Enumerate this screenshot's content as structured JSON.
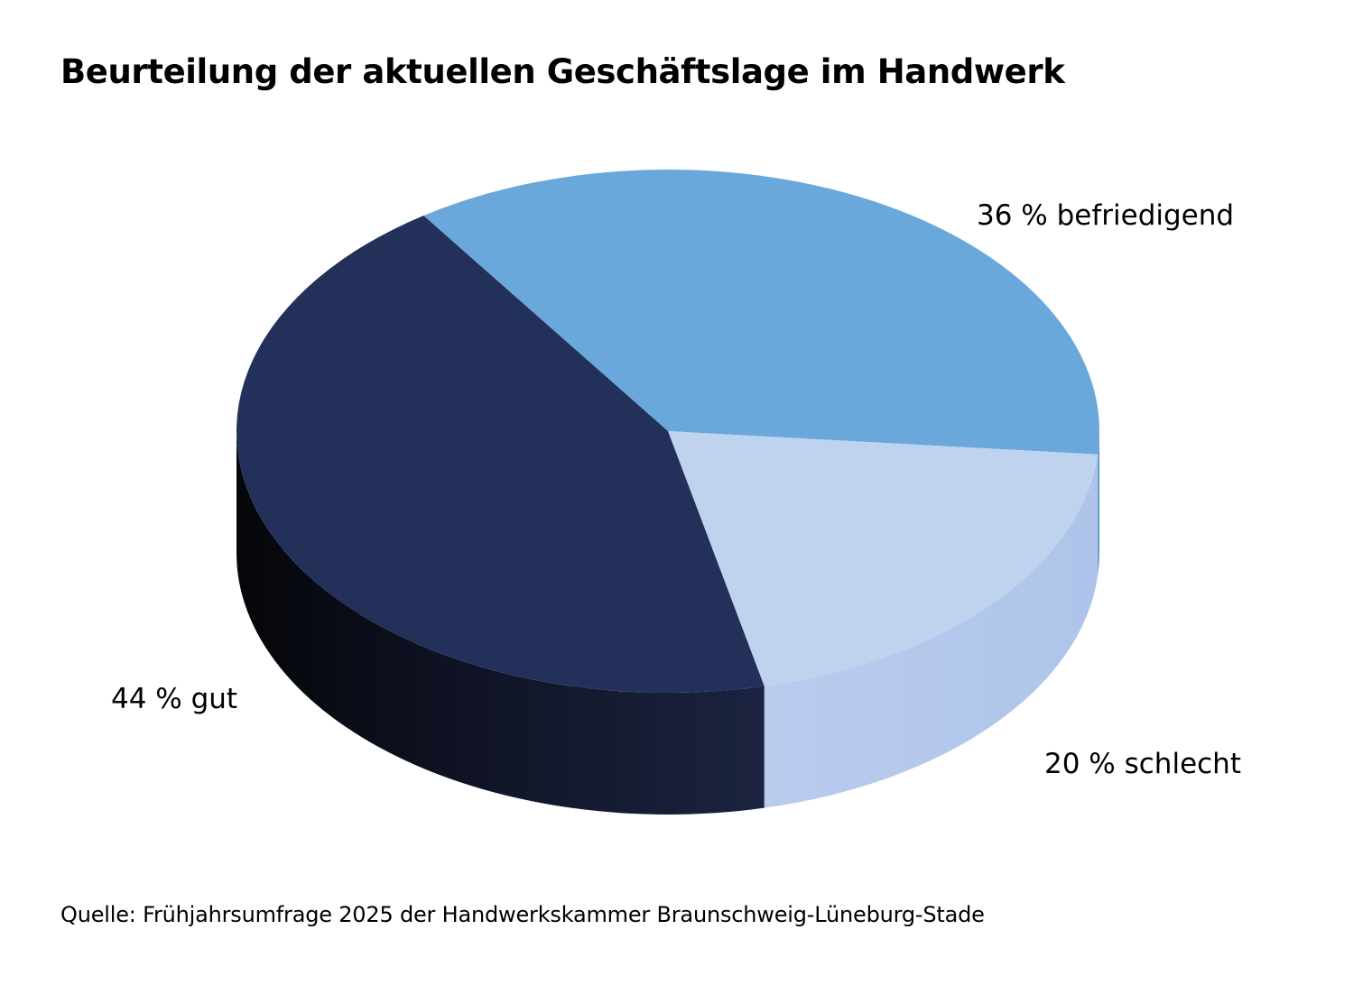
{
  "chart_data": {
    "type": "pie",
    "title": "Beurteilung der aktuellen Geschäftslage im Handwerk",
    "source": "Quelle: Frühjahrsumfrage 2025 der Handwerkskammer Braunschweig-Lüneburg-Stade",
    "slices": [
      {
        "key": "befriedigend",
        "value": 36,
        "label": "36 % befriedigend",
        "color": "#6aa8db",
        "side_color": "#5b95c6"
      },
      {
        "key": "schlecht",
        "value": 20,
        "label": "20 % schlecht",
        "color": "#bfd3ef",
        "side_color": "#b3c8ec"
      },
      {
        "key": "gut",
        "value": 44,
        "label": "44 % gut",
        "color": "#22305a",
        "side_color": "#111626"
      }
    ]
  }
}
